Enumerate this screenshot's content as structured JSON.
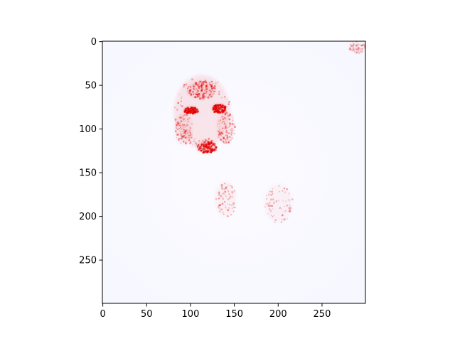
{
  "chart_data": {
    "type": "heatmap",
    "title": "",
    "xlabel": "",
    "ylabel": "",
    "colormap": "bwr",
    "grid": false,
    "legend": "none",
    "image_size": [
      300,
      300
    ],
    "xlim": [
      -0.5,
      299.5
    ],
    "ylim": [
      299.5,
      -0.5
    ],
    "xticks": [
      0,
      50,
      100,
      150,
      200,
      250
    ],
    "yticks": [
      0,
      50,
      100,
      150,
      200,
      250
    ],
    "xtick_labels": [
      "0",
      "50",
      "100",
      "150",
      "200",
      "250"
    ],
    "ytick_labels": [
      "0",
      "50",
      "100",
      "150",
      "200",
      "250"
    ],
    "colors": {
      "background": "#ffffff",
      "positive": "#e00000",
      "negative": "#9aa0ff",
      "axes": "#000000"
    },
    "features": [
      {
        "name": "face-outline",
        "cx": 113,
        "cy": 80,
        "rx": 32,
        "ry": 42,
        "intensity": 0.45
      },
      {
        "name": "left-eye",
        "cx": 100,
        "cy": 78,
        "rx": 8,
        "ry": 4,
        "intensity": 0.8
      },
      {
        "name": "right-eye",
        "cx": 132,
        "cy": 76,
        "rx": 8,
        "ry": 5,
        "intensity": 0.8
      },
      {
        "name": "nose",
        "cx": 118,
        "cy": 120,
        "rx": 11,
        "ry": 7,
        "intensity": 0.9
      },
      {
        "name": "forehead-stripes",
        "cx": 112,
        "cy": 55,
        "rx": 16,
        "ry": 10,
        "intensity": 0.6
      },
      {
        "name": "cheek-left",
        "cx": 92,
        "cy": 100,
        "rx": 10,
        "ry": 18,
        "intensity": 0.35
      },
      {
        "name": "cheek-right",
        "cx": 140,
        "cy": 98,
        "rx": 10,
        "ry": 18,
        "intensity": 0.35
      },
      {
        "name": "body-stripes-left",
        "cx": 140,
        "cy": 180,
        "rx": 12,
        "ry": 20,
        "intensity": 0.25
      },
      {
        "name": "body-stripes-right",
        "cx": 200,
        "cy": 185,
        "rx": 16,
        "ry": 22,
        "intensity": 0.2
      },
      {
        "name": "corner-top-right",
        "cx": 290,
        "cy": 5,
        "rx": 10,
        "ry": 8,
        "intensity": 0.15
      }
    ]
  }
}
